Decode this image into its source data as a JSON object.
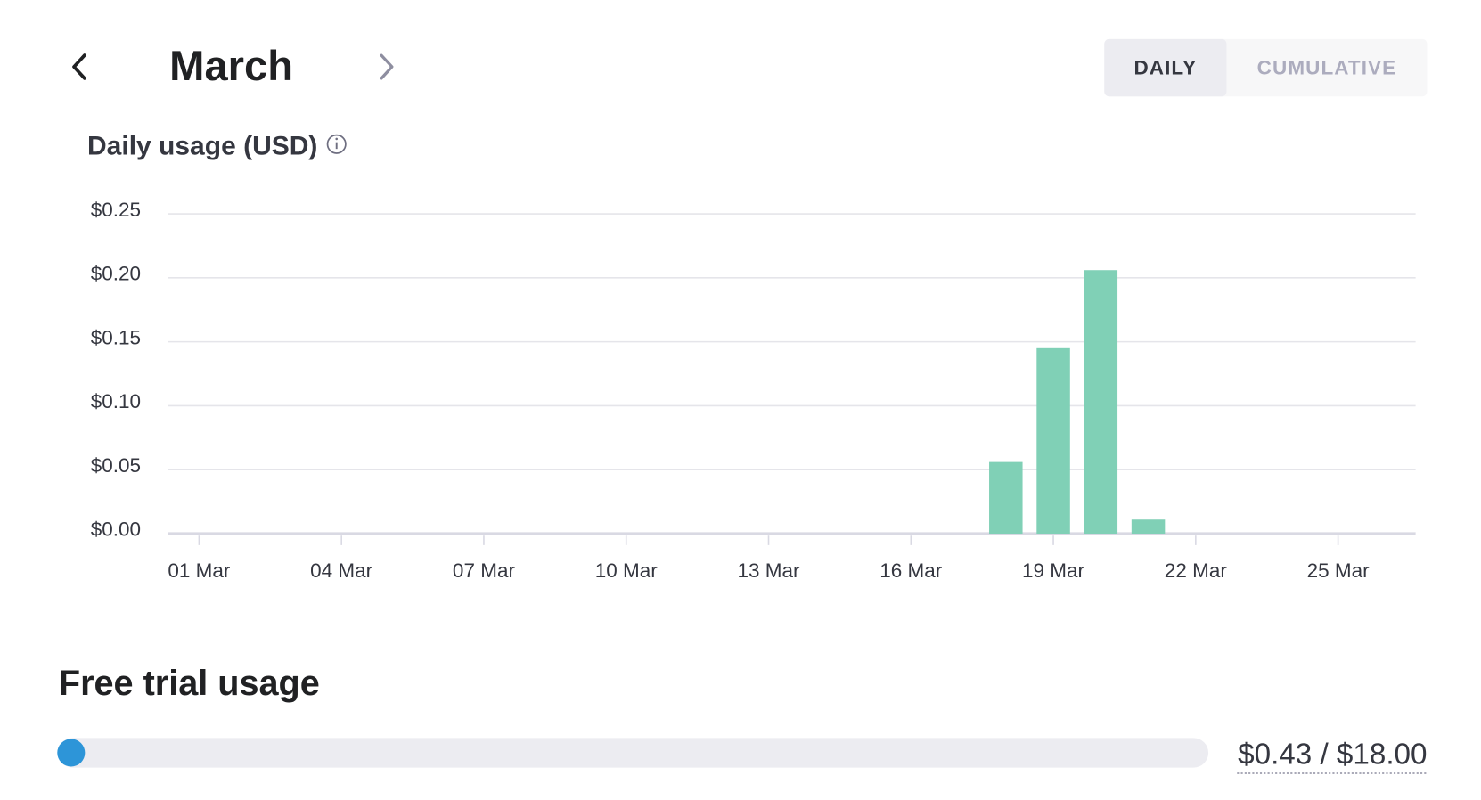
{
  "header": {
    "month": "March",
    "toggle": [
      "DAILY",
      "CUMULATIVE"
    ]
  },
  "chart_data": {
    "type": "bar",
    "title": "Daily usage (USD)",
    "categories": [
      "01 Mar",
      null,
      null,
      "04 Mar",
      null,
      null,
      "07 Mar",
      null,
      null,
      "10 Mar",
      null,
      null,
      "13 Mar",
      null,
      null,
      "16 Mar",
      null,
      null,
      "19 Mar",
      null,
      null,
      "22 Mar",
      null,
      null,
      "25 Mar",
      null
    ],
    "values": [
      0,
      0,
      0,
      0,
      0,
      0,
      0,
      0,
      0,
      0,
      0,
      0,
      0,
      0,
      0,
      0,
      0,
      0.056,
      0.145,
      0.206,
      0.011,
      0,
      0,
      0,
      0,
      0
    ],
    "color": "#80d0b6",
    "ylim": [
      0,
      0.25
    ],
    "yticks": [
      {
        "value": 0,
        "label": "$0.00"
      },
      {
        "value": 0.05,
        "label": "$0.05"
      },
      {
        "value": 0.1,
        "label": "$0.10"
      },
      {
        "value": 0.15,
        "label": "$0.15"
      },
      {
        "value": 0.2,
        "label": "$0.20"
      },
      {
        "value": 0.25,
        "label": "$0.25"
      }
    ],
    "grid": true
  },
  "free_trial": {
    "title": "Free trial usage",
    "amount": "$0.43 / $18.00"
  }
}
